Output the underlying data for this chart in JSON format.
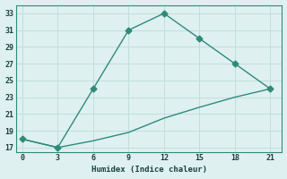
{
  "line1_x": [
    0,
    3,
    6,
    9,
    12,
    15,
    18,
    21
  ],
  "line1_y": [
    18,
    17,
    24,
    31,
    33,
    30,
    27,
    24
  ],
  "line2_x": [
    0,
    3,
    6,
    9,
    12,
    15,
    18,
    21
  ],
  "line2_y": [
    18,
    17,
    17.8,
    18.8,
    20.5,
    21.8,
    23.0,
    24
  ],
  "line_color": "#2e8b7a",
  "bg_color": "#dff0f0",
  "grid_color": "#c0dede",
  "xlabel": "Humidex (Indice chaleur)",
  "xlim": [
    -0.5,
    22
  ],
  "ylim": [
    16.5,
    34
  ],
  "xticks": [
    0,
    3,
    6,
    9,
    12,
    15,
    18,
    21
  ],
  "yticks": [
    17,
    19,
    21,
    23,
    25,
    27,
    29,
    31,
    33
  ],
  "marker": "D",
  "marker_size": 3.5,
  "line_width": 1.0
}
